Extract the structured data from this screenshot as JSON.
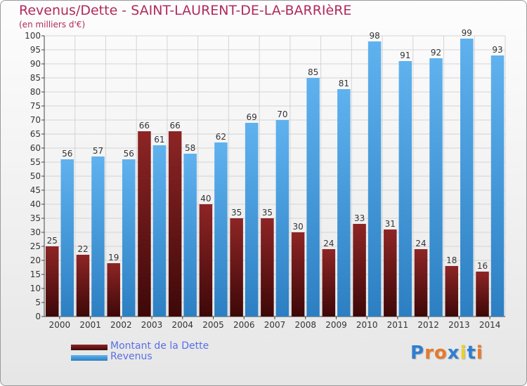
{
  "chart_data": {
    "type": "bar",
    "title": "Revenus/Dette - SAINT-LAURENT-DE-LA-BARRIèRE",
    "subtitle": "(en milliers d'€)",
    "categories": [
      "2000",
      "2001",
      "2002",
      "2003",
      "2004",
      "2005",
      "2006",
      "2007",
      "2008",
      "2009",
      "2010",
      "2011",
      "2012",
      "2013",
      "2014"
    ],
    "series": [
      {
        "name": "Montant de la Dette",
        "color": "#7a1c1c",
        "values": [
          25,
          22,
          19,
          66,
          66,
          40,
          35,
          35,
          30,
          24,
          33,
          31,
          24,
          18,
          16
        ]
      },
      {
        "name": "Revenus",
        "color": "#4aa3e6",
        "values": [
          56,
          57,
          56,
          61,
          58,
          62,
          69,
          70,
          85,
          81,
          98,
          91,
          92,
          99,
          93
        ]
      }
    ],
    "ylim": [
      0,
      100
    ],
    "ytick_step": 5,
    "grid": true,
    "legend": "bottom-left"
  },
  "logo": {
    "text": "Proxiti",
    "letter_colors": [
      "#2f7fcf",
      "#e8792a",
      "#e8792a",
      "#2f7fcf",
      "#e8d22a",
      "#2f7fcf",
      "#e8792a"
    ]
  }
}
